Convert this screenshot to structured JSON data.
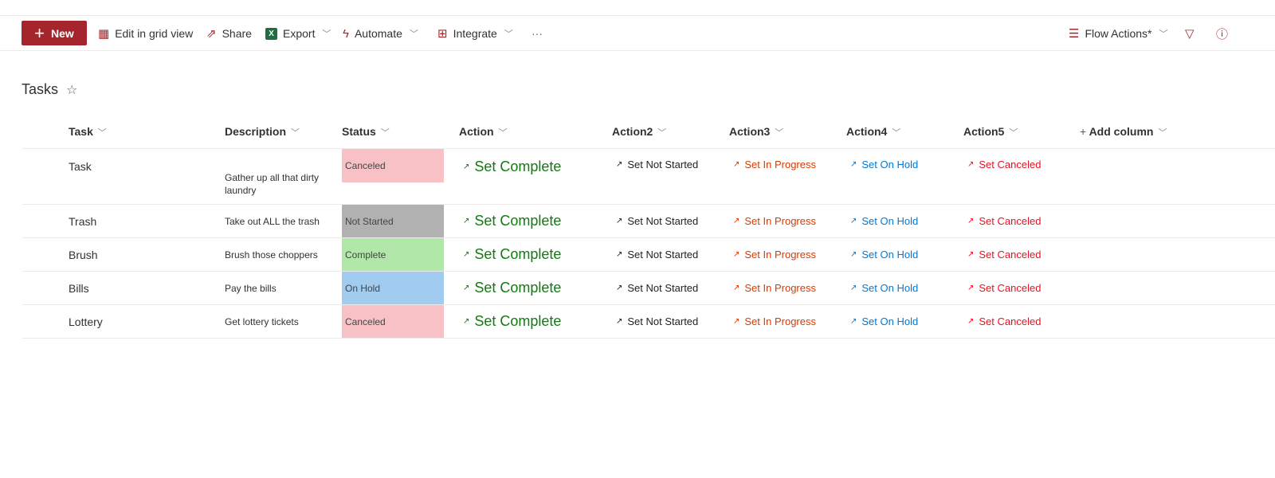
{
  "toolbar": {
    "new": "New",
    "edit_grid": "Edit in grid view",
    "share": "Share",
    "export": "Export",
    "automate": "Automate",
    "integrate": "Integrate",
    "more": "···",
    "view": "Flow Actions*"
  },
  "page": {
    "title": "Tasks"
  },
  "columns": [
    "Task",
    "Description",
    "Status",
    "Action",
    "Action2",
    "Action3",
    "Action4",
    "Action5",
    "Add column"
  ],
  "rows": [
    {
      "task": "Task",
      "description": "Gather up all that dirty laundry",
      "status": "Canceled",
      "status_color": "#f8c1c6"
    },
    {
      "task": "Trash",
      "description": "Take out ALL the trash",
      "status": "Not Started",
      "status_color": "#b1b1b1"
    },
    {
      "task": "Brush",
      "description": "Brush those choppers",
      "status": "Complete",
      "status_color": "#b1e7a9"
    },
    {
      "task": "Bills",
      "description": "Pay the bills",
      "status": "On Hold",
      "status_color": "#a1cbef"
    },
    {
      "task": "Lottery",
      "description": "Get lottery tickets",
      "status": "Canceled",
      "status_color": "#f8c1c6"
    }
  ],
  "actions": [
    {
      "label": "Set Complete",
      "color": "#107c10"
    },
    {
      "label": "Set Not Started",
      "color": "#201f1e"
    },
    {
      "label": "Set In Progress",
      "color": "#d83b01"
    },
    {
      "label": "Set On Hold",
      "color": "#0078d4"
    },
    {
      "label": "Set Canceled",
      "color": "#e81123"
    }
  ]
}
